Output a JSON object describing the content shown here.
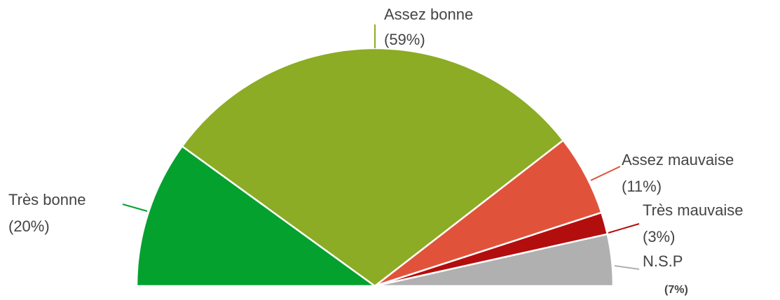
{
  "chart_data": {
    "type": "semi-pie",
    "categories": [
      "Très bonne",
      "Assez bonne",
      "Assez mauvaise",
      "Très mauvaise",
      "N.S.P"
    ],
    "values": [
      20,
      59,
      11,
      3,
      7
    ],
    "value_labels": [
      "(20%)",
      "(59%)",
      "(11%)",
      "(3%)",
      "(7%)"
    ],
    "colors": [
      "#05a12f",
      "#8bac24",
      "#e0533a",
      "#b30e0e",
      "#b0b0b0"
    ]
  }
}
